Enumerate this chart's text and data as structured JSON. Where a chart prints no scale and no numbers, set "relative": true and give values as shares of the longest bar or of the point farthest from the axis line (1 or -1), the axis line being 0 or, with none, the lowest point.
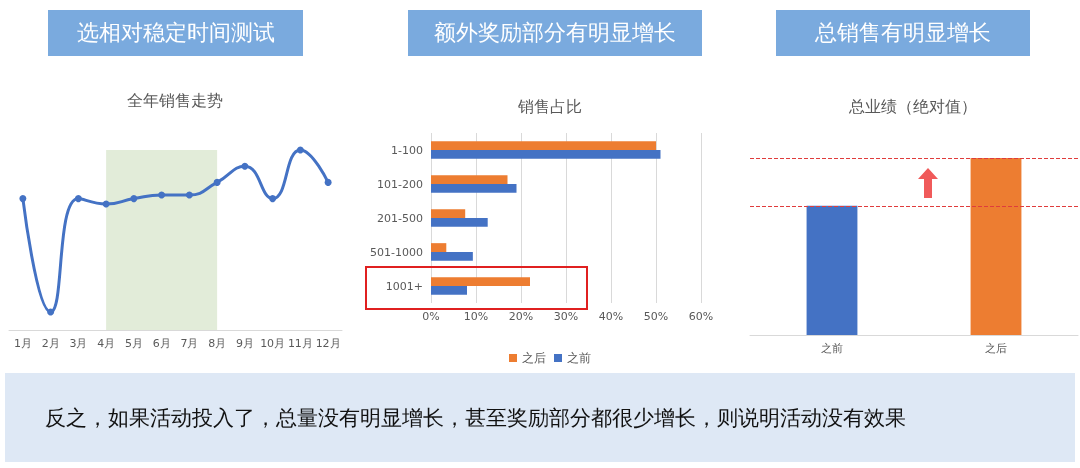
{
  "chart_data": [
    {
      "type": "line",
      "title": "选相对稳定时间测试",
      "subtitle": "全年销售走势",
      "relative": true,
      "marker": "circle",
      "categories": [
        "1月",
        "2月",
        "3月",
        "4月",
        "5月",
        "6月",
        "7月",
        "8月",
        "9月",
        "10月",
        "11月",
        "12月"
      ],
      "series": [
        {
          "color": "#4472c4",
          "values": [
            0.73,
            0.1,
            0.73,
            0.7,
            0.73,
            0.75,
            0.75,
            0.82,
            0.91,
            0.73,
            1,
            0.82
          ]
        }
      ],
      "bands": [
        {
          "axis": "x",
          "from": "4月",
          "to": "8月",
          "color": "#e2ecd9"
        }
      ]
    },
    {
      "type": "bar",
      "orientation": "horizontal",
      "title": "额外奖励部分有明显增长",
      "subtitle": "销售占比",
      "categories": [
        "1-100",
        "101-200",
        "201-500",
        "501-1000",
        "1001+"
      ],
      "series": [
        {
          "name": "之后",
          "color": "#ed7d31",
          "values": [
            50,
            17,
            7.6,
            3.4,
            22
          ]
        },
        {
          "name": "之前",
          "color": "#4472c4",
          "values": [
            51,
            19,
            12.6,
            9.3,
            8
          ]
        }
      ],
      "xlim": [
        0,
        60
      ],
      "xticks": [
        {
          "value": 0,
          "label": "0%"
        },
        {
          "value": 10,
          "label": "10%"
        },
        {
          "value": 20,
          "label": "20%"
        },
        {
          "value": 30,
          "label": "30%"
        },
        {
          "value": 40,
          "label": "40%"
        },
        {
          "value": 50,
          "label": "50%"
        },
        {
          "value": 60,
          "label": "60%"
        }
      ],
      "grid": "x",
      "legend": "bottom"
    },
    {
      "type": "bar",
      "title": "总销售有明显增长",
      "subtitle": "总业绩（绝对值）",
      "relative": true,
      "categories": [
        "之前",
        "之后"
      ],
      "values": [
        0.73,
        1
      ],
      "colors": [
        "#4472c4",
        "#ed7d31"
      ],
      "ref_lines": [
        {
          "axis": "y",
          "value": 0.73,
          "color": "#e03c3c",
          "line_style": "dashed"
        },
        {
          "axis": "y",
          "value": 1,
          "color": "#e03c3c",
          "line_style": "dashed"
        }
      ]
    },
    {
      "type": "other",
      "annotations": [
        "反之，如果活动投入了，总量没有明显增长，甚至奖励部分都很少增长，则说明活动没有效果"
      ]
    }
  ]
}
